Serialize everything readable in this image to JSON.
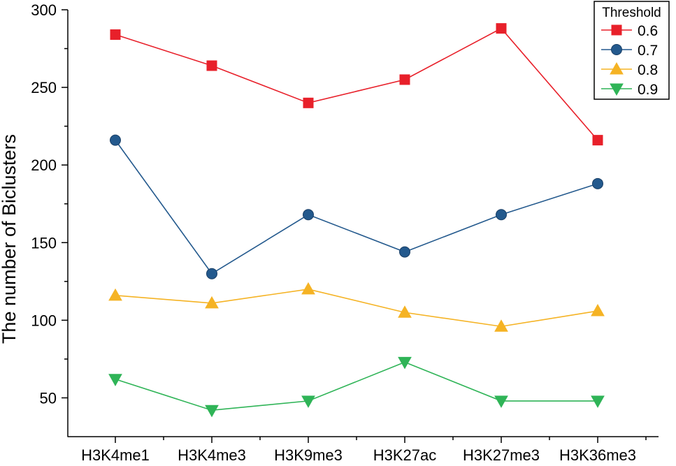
{
  "chart_data": {
    "type": "line",
    "title": "",
    "xlabel": "",
    "ylabel": "The number of Biclusters",
    "categories": [
      "H3K4me1",
      "H3K4me3",
      "H3K9me3",
      "H3K27ac",
      "H3K27me3",
      "H3K36me3"
    ],
    "ylim": [
      25,
      300
    ],
    "yticks": [
      50,
      100,
      150,
      200,
      250,
      300
    ],
    "grid": false,
    "legend": {
      "title": "Threshold",
      "position": "top-right"
    },
    "series": [
      {
        "name": "0.6",
        "color": "#e8202a",
        "marker": "square",
        "values": [
          284,
          264,
          240,
          255,
          288,
          216
        ]
      },
      {
        "name": "0.7",
        "color": "#23598d",
        "marker": "circle",
        "values": [
          216,
          130,
          168,
          144,
          168,
          188
        ]
      },
      {
        "name": "0.8",
        "color": "#f5b324",
        "marker": "triangle-up",
        "values": [
          116,
          111,
          120,
          105,
          96,
          106
        ]
      },
      {
        "name": "0.9",
        "color": "#2fb457",
        "marker": "triangle-down",
        "values": [
          62,
          42,
          48,
          73,
          48,
          48
        ]
      }
    ]
  }
}
